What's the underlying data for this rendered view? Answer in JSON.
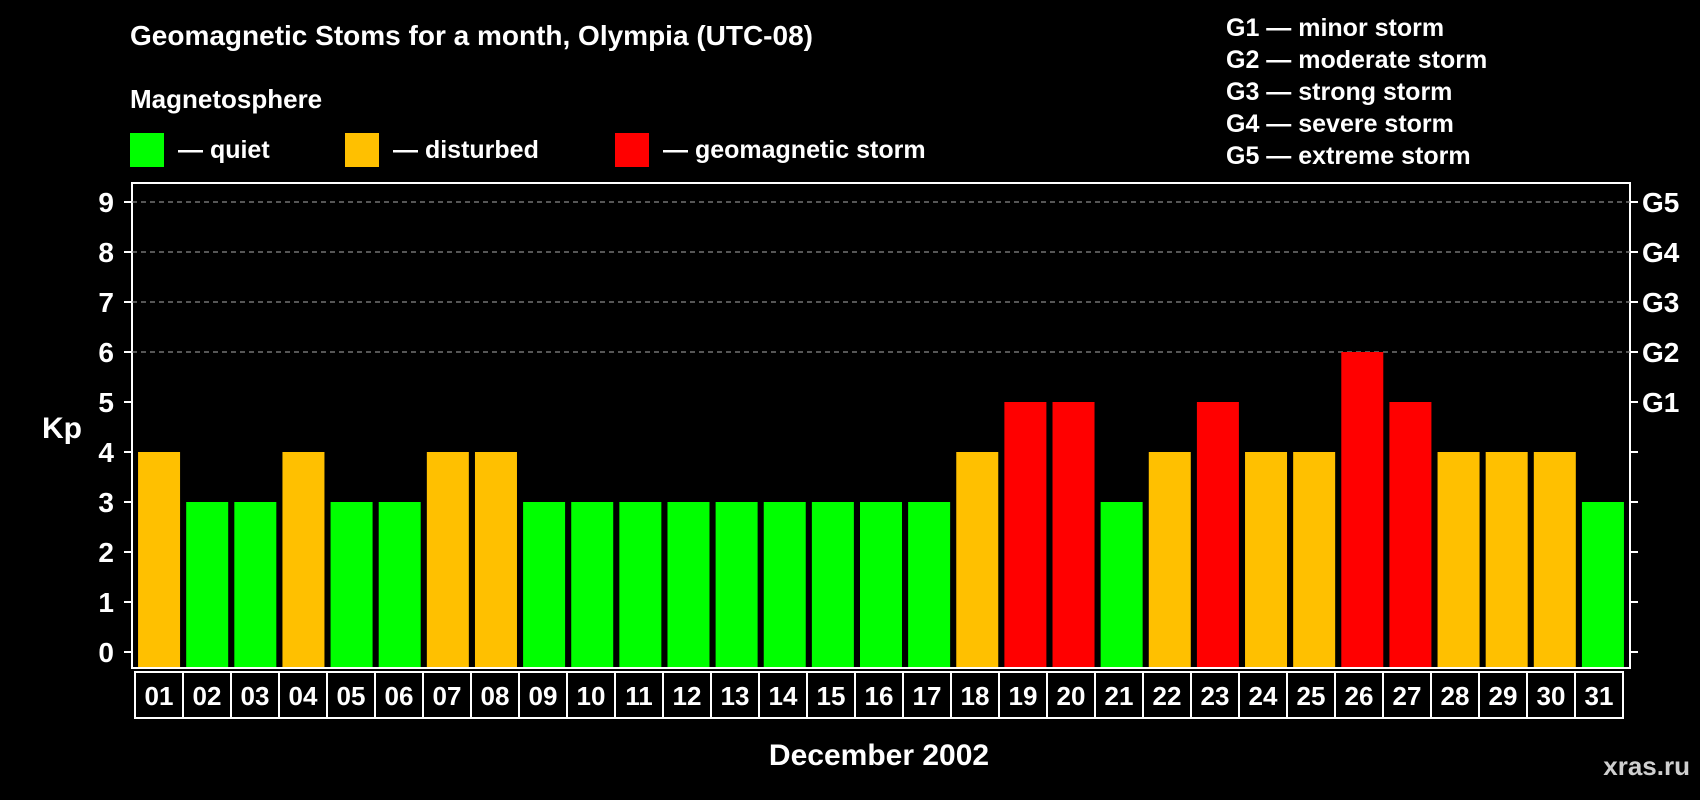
{
  "chart_data": {
    "type": "bar",
    "title": "Geomagnetic Stoms for a month, Olympia (UTC-08)",
    "subtitle": "Magnetosphere",
    "xlabel": "December 2002",
    "ylabel": "Kp",
    "ylim": [
      0,
      9
    ],
    "yticks": [
      "0",
      "1",
      "2",
      "3",
      "4",
      "5",
      "6",
      "7",
      "8",
      "9"
    ],
    "right_ticks": [
      {
        "kp": 5,
        "label": "G1"
      },
      {
        "kp": 6,
        "label": "G2"
      },
      {
        "kp": 7,
        "label": "G3"
      },
      {
        "kp": 8,
        "label": "G4"
      },
      {
        "kp": 9,
        "label": "G5"
      }
    ],
    "grid_dashed_at": [
      6,
      7,
      8,
      9
    ],
    "categories": [
      "01",
      "02",
      "03",
      "04",
      "05",
      "06",
      "07",
      "08",
      "09",
      "10",
      "11",
      "12",
      "13",
      "14",
      "15",
      "16",
      "17",
      "18",
      "19",
      "20",
      "21",
      "22",
      "23",
      "24",
      "25",
      "26",
      "27",
      "28",
      "29",
      "30",
      "31"
    ],
    "values": [
      4,
      3,
      3,
      4,
      3,
      3,
      4,
      4,
      3,
      3,
      3,
      3,
      3,
      3,
      3,
      3,
      3,
      4,
      5,
      5,
      3,
      4,
      5,
      4,
      4,
      6,
      5,
      4,
      4,
      4,
      3
    ],
    "legend": [
      {
        "label": "— quiet",
        "color": "#00ff00"
      },
      {
        "label": "— disturbed",
        "color": "#ffc000"
      },
      {
        "label": "— geomagnetic storm",
        "color": "#ff0000"
      }
    ],
    "storm_levels": [
      "G1 — minor storm",
      "G2 — moderate storm",
      "G3 — strong storm",
      "G4 — severe storm",
      "G5 — extreme storm"
    ],
    "colors": {
      "quiet": "#00ff00",
      "disturbed": "#ffc000",
      "storm": "#ff0000"
    },
    "legend_placement": "top-left"
  },
  "watermark": "xras.ru"
}
